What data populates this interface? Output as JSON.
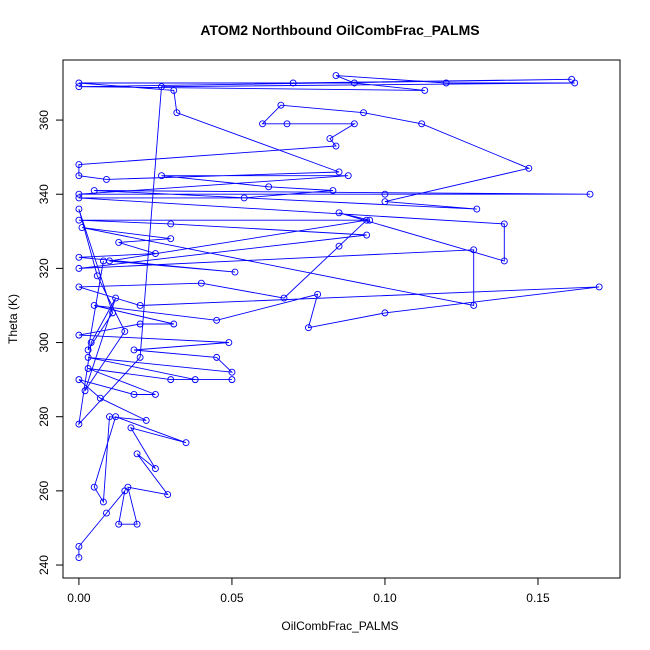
{
  "chart_data": {
    "type": "line",
    "title": "ATOM2 Northbound OilCombFrac_PALMS",
    "x_label": "OilCombFrac_PALMS",
    "y_label": "Theta (K)",
    "markers": true,
    "grid": false,
    "xlim": [
      -0.0052,
      0.1768
    ],
    "ylim": [
      236.5,
      376.2
    ],
    "xticks": [
      {
        "value": 0,
        "label": "0.00"
      },
      0.05,
      {
        "value": 0.1,
        "label": "0.10"
      },
      0.15
    ],
    "yticks": [
      240,
      260,
      280,
      300,
      320,
      340,
      360
    ],
    "x": [
      0,
      0,
      0.009,
      0.015,
      0.013,
      0.019,
      0.016,
      0.029,
      0.019,
      0.025,
      0.017,
      0.035,
      0.012,
      0.005,
      0.008,
      0.01,
      0.022,
      0.007,
      0,
      0.018,
      0.025,
      0.003,
      0.03,
      0.05,
      0.038,
      0.003,
      0.05,
      0.045,
      0.018,
      0.049,
      0,
      0.02,
      0.031,
      0.005,
      0.045,
      0.078,
      0.075,
      0.1,
      0.17,
      0.02,
      0,
      0.04,
      0.067,
      0.085,
      0.094,
      0.01,
      0.051,
      0,
      0.025,
      0.013,
      0.03,
      0.001,
      0.129,
      0.129,
      0,
      0.094,
      0.03,
      0,
      0.095,
      0.085,
      0.139,
      0.139,
      0,
      0.054,
      0.083,
      0.062,
      0.027,
      0.088,
      0,
      0.1,
      0.167,
      0.005,
      0.13,
      0.1,
      0.147,
      0.112,
      0.093,
      0.066,
      0.06,
      0.068,
      0.09,
      0.082,
      0.084,
      0,
      0,
      0.009,
      0.085,
      0.032,
      0.031,
      0,
      0.07,
      0.161,
      0,
      0.113,
      0.09,
      0.084,
      0.12,
      0.162,
      0.027,
      0.02,
      0,
      0.004,
      0.012,
      0.002,
      0.015,
      0.006,
      0,
      0.011,
      0.003,
      0.008
    ],
    "series": [
      {
        "name": "Theta",
        "color": "#0000ff",
        "values": [
          242,
          245,
          254,
          260,
          251,
          251,
          261,
          259,
          270,
          266,
          277,
          273,
          280,
          261,
          257,
          280,
          279,
          285,
          290,
          286,
          286,
          293,
          290,
          290,
          290,
          296,
          292,
          296,
          298,
          300,
          302,
          305,
          305,
          310,
          306,
          313,
          304,
          308,
          315,
          310,
          315,
          316,
          312,
          326,
          333,
          322,
          319,
          323,
          324,
          327,
          328,
          331,
          310,
          325,
          320,
          329,
          332,
          333,
          333,
          335,
          322,
          332,
          339,
          339,
          341,
          342,
          345,
          345,
          340,
          340,
          340,
          341,
          336,
          338,
          347,
          359,
          362,
          364,
          359,
          359,
          359,
          355,
          353,
          348,
          345,
          344,
          346,
          362,
          368,
          370,
          370,
          371,
          369,
          368,
          370,
          372,
          370,
          370,
          369,
          296,
          278,
          300,
          312,
          287,
          303,
          318,
          336,
          308,
          298,
          322
        ]
      }
    ]
  }
}
